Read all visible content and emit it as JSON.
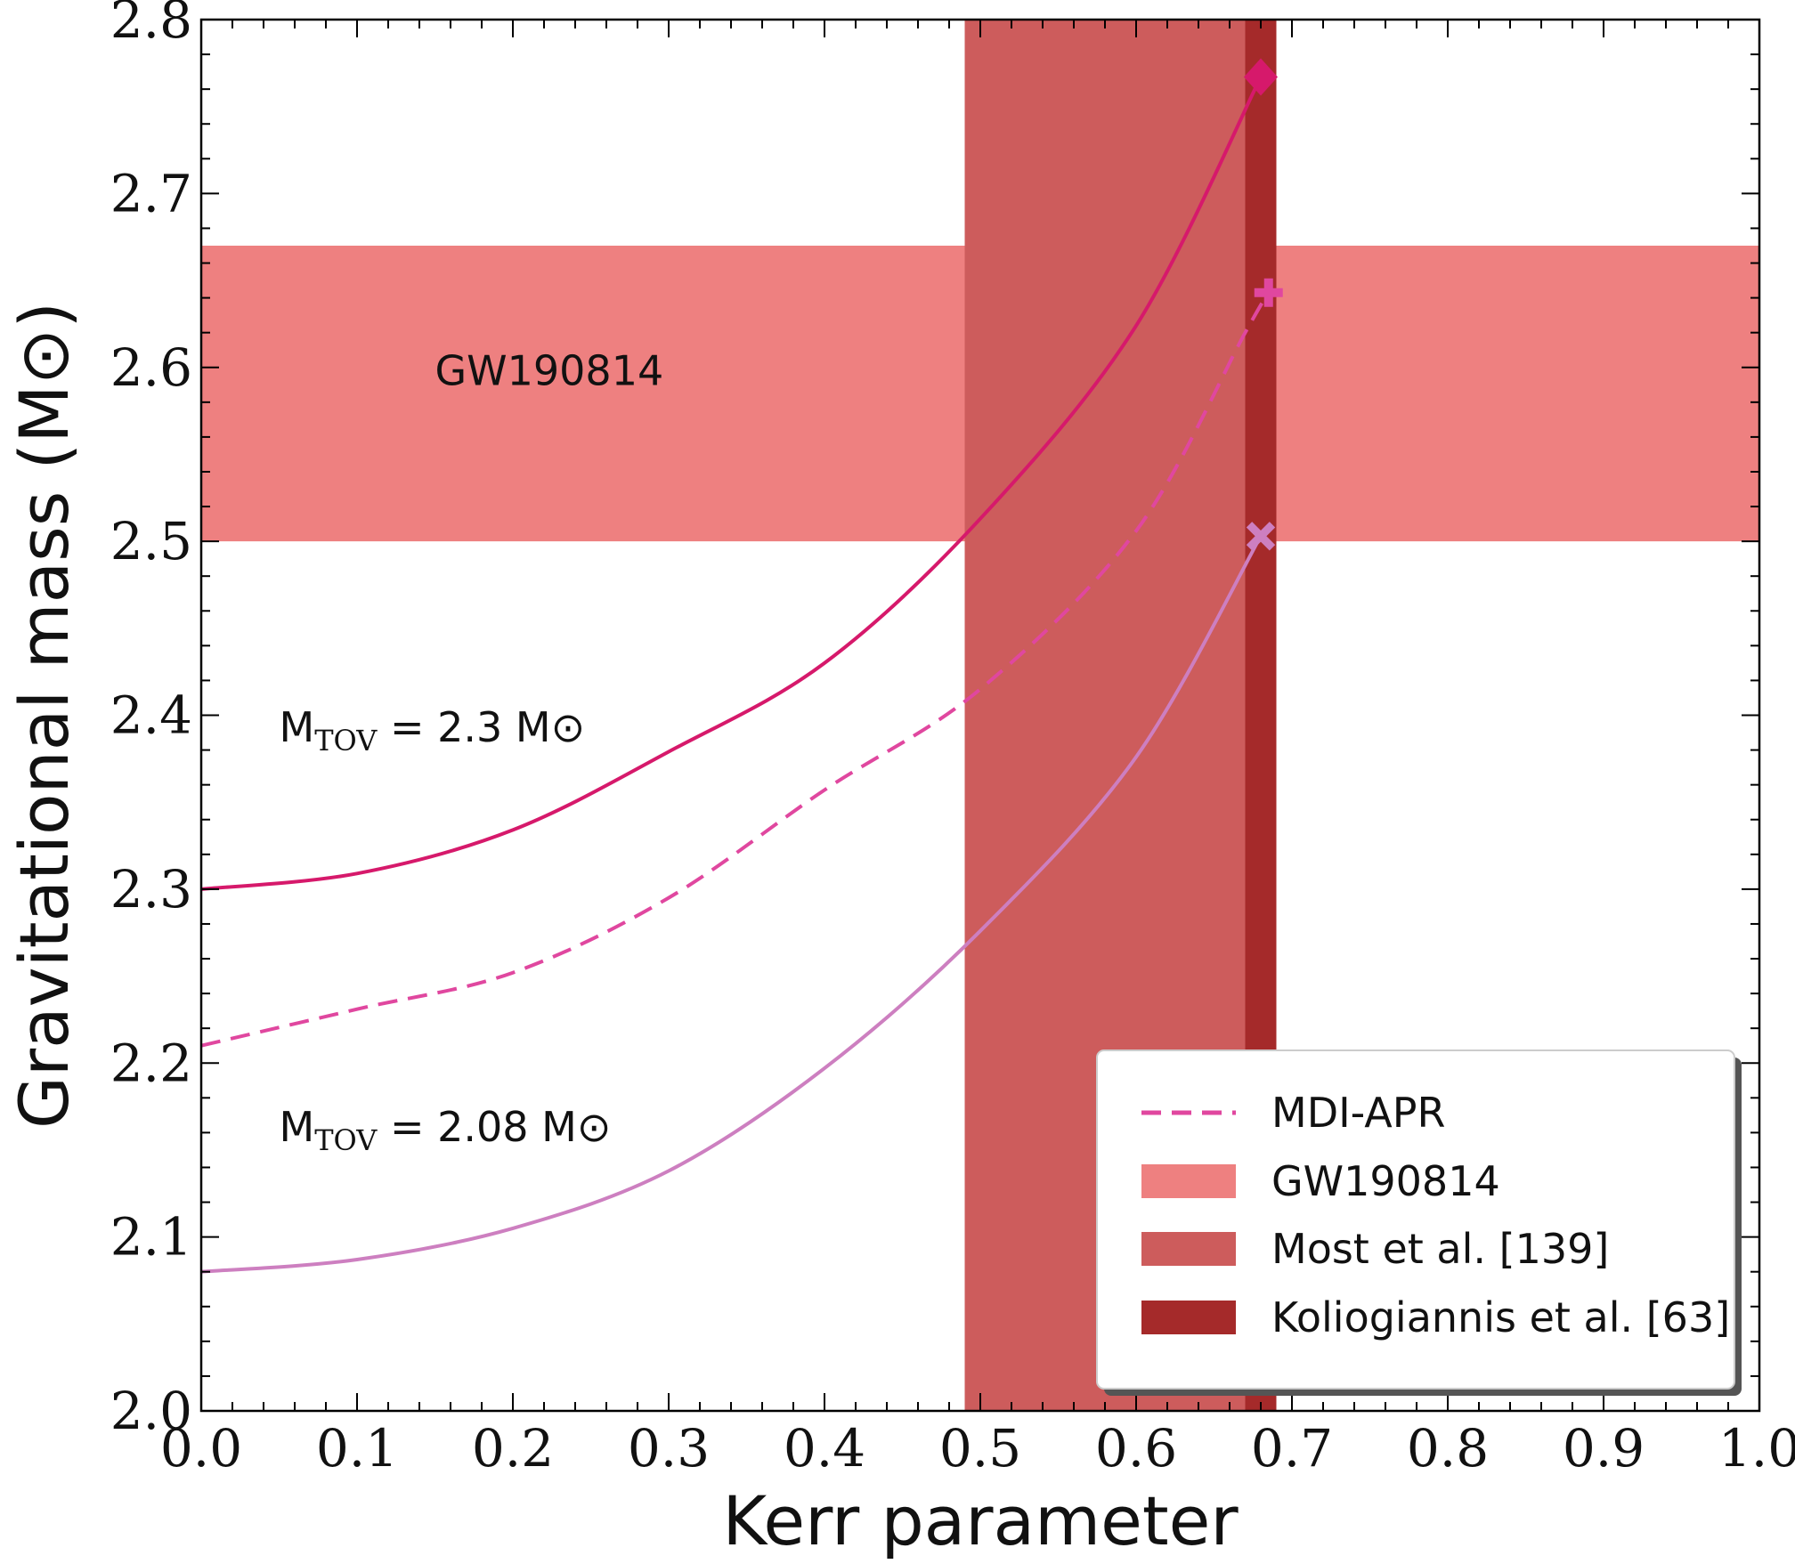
{
  "chart_data": {
    "type": "line",
    "xlabel": "Kerr parameter",
    "ylabel": "Gravitational mass (M⊙)",
    "xlim": [
      0.0,
      1.0
    ],
    "ylim": [
      2.0,
      2.8
    ],
    "x_ticks": [
      "0.0",
      "0.1",
      "0.2",
      "0.3",
      "0.4",
      "0.5",
      "0.6",
      "0.7",
      "0.8",
      "0.9",
      "1.0"
    ],
    "y_ticks": [
      "2.0",
      "2.1",
      "2.2",
      "2.3",
      "2.4",
      "2.5",
      "2.6",
      "2.7",
      "2.8"
    ],
    "bands": [
      {
        "name": "GW190814",
        "orientation": "horizontal",
        "range": [
          2.5,
          2.67
        ],
        "color": "#ee8080"
      },
      {
        "name": "Most et al. [139]",
        "orientation": "vertical",
        "range": [
          0.49,
          0.68
        ],
        "color": "#cd5c5c"
      },
      {
        "name": "Koliogiannis et al. [63]",
        "orientation": "vertical",
        "range": [
          0.67,
          0.69
        ],
        "color": "#a52a2a"
      }
    ],
    "series": [
      {
        "label": "M_TOV = 2.3 M⊙",
        "style": "solid",
        "color": "#d6196b",
        "marker": "diamond",
        "x": [
          0.0,
          0.1,
          0.2,
          0.3,
          0.4,
          0.5,
          0.6,
          0.68
        ],
        "y": [
          2.3,
          2.309,
          2.334,
          2.379,
          2.43,
          2.513,
          2.624,
          2.767
        ]
      },
      {
        "name": "MDI-APR",
        "style": "dashed",
        "color": "#e0479f",
        "marker": "plus",
        "x": [
          0.0,
          0.1,
          0.2,
          0.3,
          0.4,
          0.5,
          0.6,
          0.67,
          0.685
        ],
        "y": [
          2.21,
          2.231,
          2.252,
          2.295,
          2.357,
          2.415,
          2.506,
          2.62,
          2.643
        ]
      },
      {
        "label": "M_TOV = 2.08 M⊙",
        "style": "solid",
        "color": "#cd7fc0",
        "marker": "x",
        "x": [
          0.0,
          0.1,
          0.2,
          0.3,
          0.4,
          0.5,
          0.6,
          0.68
        ],
        "y": [
          2.08,
          2.087,
          2.105,
          2.138,
          2.197,
          2.276,
          2.376,
          2.503
        ]
      }
    ],
    "annotations": [
      {
        "text": "GW190814",
        "x": 0.15,
        "y": 2.59
      },
      {
        "text_main": "M",
        "text_sub": "TOV",
        "text_rest": " = 2.3 M⊙",
        "x": 0.05,
        "y": 2.385
      },
      {
        "text_main": "M",
        "text_sub": "TOV",
        "text_rest": " = 2.08 M⊙",
        "x": 0.05,
        "y": 2.155
      }
    ],
    "legend": {
      "placement": "lower-right",
      "entries": [
        {
          "label": "MDI-APR",
          "kind": "dashed-line",
          "color": "#e0479f"
        },
        {
          "label": "GW190814",
          "kind": "patch",
          "color": "#ee8080"
        },
        {
          "label": "Most et al. [139]",
          "kind": "patch",
          "color": "#cd5c5c"
        },
        {
          "label": "Koliogiannis et al. [63]",
          "kind": "patch",
          "color": "#a52a2a"
        }
      ]
    },
    "grid": false
  }
}
